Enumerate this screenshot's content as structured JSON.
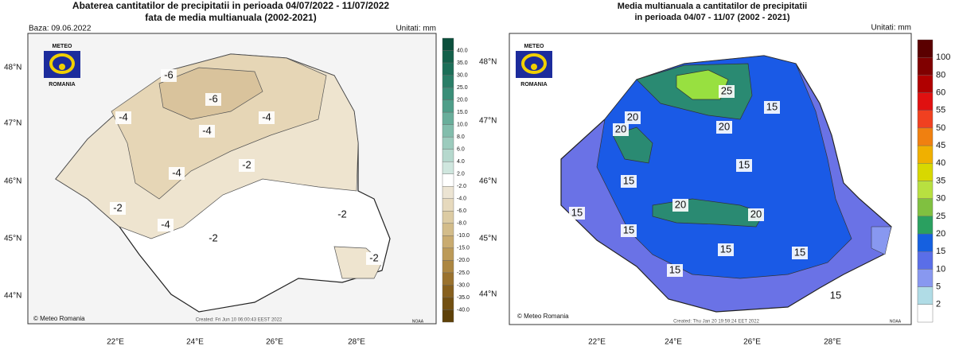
{
  "left": {
    "title": [
      "Abaterea cantitatilor de precipitatii in perioada 04/07/2022 - 11/07/2022",
      "fata de media multianuala (2002-2021)"
    ],
    "base": "Baza: 09.06.2022",
    "units": "Unitati: mm",
    "lat_labels": [
      "48°N",
      "47°N",
      "46°N",
      "45°N",
      "44°N"
    ],
    "lon_labels": [
      "22°E",
      "24°E",
      "26°E",
      "28°E"
    ],
    "logo": {
      "top": "METEO",
      "bottom": "ROMANIA"
    },
    "colorbar": {
      "labels": [
        "40.0",
        "35.0",
        "30.0",
        "25.0",
        "20.0",
        "15.0",
        "10.0",
        "8.0",
        "6.0",
        "4.0",
        "2.0",
        "-2.0",
        "-4.0",
        "-6.0",
        "-8.0",
        "-10.0",
        "-15.0",
        "-20.0",
        "-25.0",
        "-30.0",
        "-35.0",
        "-40.0"
      ],
      "colors": [
        "#0b4f3c",
        "#13604a",
        "#1c6f58",
        "#2a7e67",
        "#3a8e78",
        "#4f9e89",
        "#69ae9b",
        "#82bdac",
        "#9ccbbd",
        "#b5d8cd",
        "#cfe6de",
        "#ffffff",
        "#ece4d3",
        "#e6d9bd",
        "#dccba3",
        "#d3bc8a",
        "#c9ab70",
        "#bc9a58",
        "#ac8641",
        "#9a722e",
        "#87601e",
        "#725012",
        "#5e4108"
      ]
    },
    "contour_labels": [
      -6,
      -6,
      -4,
      -4,
      -4,
      -2,
      -4,
      -2,
      -2,
      -4,
      -2,
      -2
    ],
    "credit": "© Meteo Romania",
    "created": "Created: Fri Jun 10 06:00:43 EEST 2022",
    "agency": "NOAA"
  },
  "right": {
    "title": [
      "Media multianuala a cantitatilor de precipitatii",
      "in perioada 04/07 - 11/07 (2002 - 2021)"
    ],
    "units": "Unitati: mm",
    "lat_labels": [
      "48°N",
      "47°N",
      "46°N",
      "45°N",
      "44°N"
    ],
    "lon_labels": [
      "22°E",
      "24°E",
      "26°E",
      "28°E"
    ],
    "logo": {
      "top": "METEO",
      "bottom": "ROMANIA"
    },
    "colorbar": {
      "labels": [
        "100",
        "80",
        "60",
        "55",
        "50",
        "45",
        "40",
        "35",
        "30",
        "25",
        "20",
        "15",
        "10",
        "5",
        "2"
      ],
      "colors": [
        "#5a0000",
        "#800000",
        "#b00000",
        "#e01010",
        "#f04020",
        "#f08010",
        "#f0b000",
        "#d8d800",
        "#b8e040",
        "#80c040",
        "#2aa060",
        "#1560e0",
        "#5a6ee8",
        "#8898f0",
        "#b0dce6",
        "#ffffff"
      ]
    },
    "contour_labels": [
      20,
      25,
      15,
      20,
      20,
      15,
      15,
      20,
      20,
      15,
      15,
      15,
      15,
      15,
      15
    ],
    "credit": "© Meteo Romania",
    "created": "Created: Thu Jan 20 19:59:24 EET 2022",
    "agency": "NOAA"
  }
}
